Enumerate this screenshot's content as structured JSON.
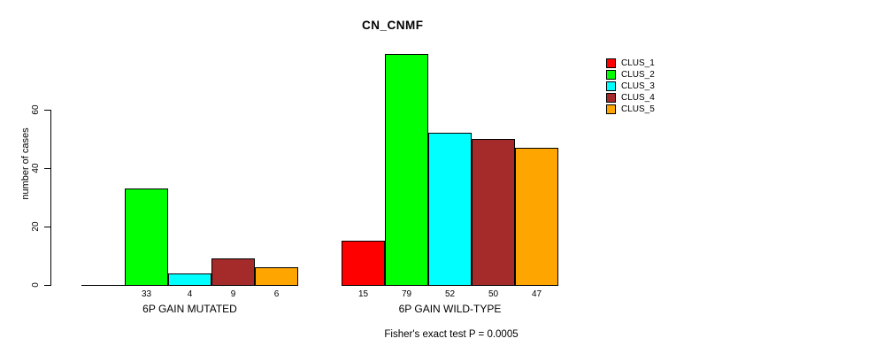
{
  "title": "CN_CNMF",
  "footer": "Fisher's exact test P = 0.0005",
  "y_axis": {
    "label": "number of cases",
    "tick_labels": [
      "0",
      "20",
      "40",
      "60"
    ]
  },
  "legend": {
    "items": [
      {
        "label": "CLUS_1",
        "color": "#FF0000"
      },
      {
        "label": "CLUS_2",
        "color": "#00FF00"
      },
      {
        "label": "CLUS_3",
        "color": "#00FFFF"
      },
      {
        "label": "CLUS_4",
        "color": "#A52A2A"
      },
      {
        "label": "CLUS_5",
        "color": "#FFA500"
      }
    ]
  },
  "chart_data": {
    "type": "bar",
    "title": "CN_CNMF",
    "xlabel": "",
    "ylabel": "number of cases",
    "categories": [
      "6P GAIN MUTATED",
      "6P GAIN WILD-TYPE"
    ],
    "series": [
      {
        "name": "CLUS_1",
        "color": "#FF0000",
        "values": [
          0,
          15
        ]
      },
      {
        "name": "CLUS_2",
        "color": "#00FF00",
        "values": [
          33,
          79
        ]
      },
      {
        "name": "CLUS_3",
        "color": "#00FFFF",
        "values": [
          4,
          52
        ]
      },
      {
        "name": "CLUS_4",
        "color": "#A52A2A",
        "values": [
          9,
          50
        ]
      },
      {
        "name": "CLUS_5",
        "color": "#FFA500",
        "values": [
          6,
          47
        ]
      }
    ],
    "bar_value_labels": [
      [
        "",
        "33",
        "4",
        "9",
        "6"
      ],
      [
        "15",
        "79",
        "52",
        "50",
        "47"
      ]
    ],
    "yticks": [
      0,
      20,
      40,
      60
    ],
    "ylim": [
      0,
      60
    ],
    "grid": false,
    "legend_position": "right",
    "annotation": "Fisher's exact test P = 0.0005"
  }
}
